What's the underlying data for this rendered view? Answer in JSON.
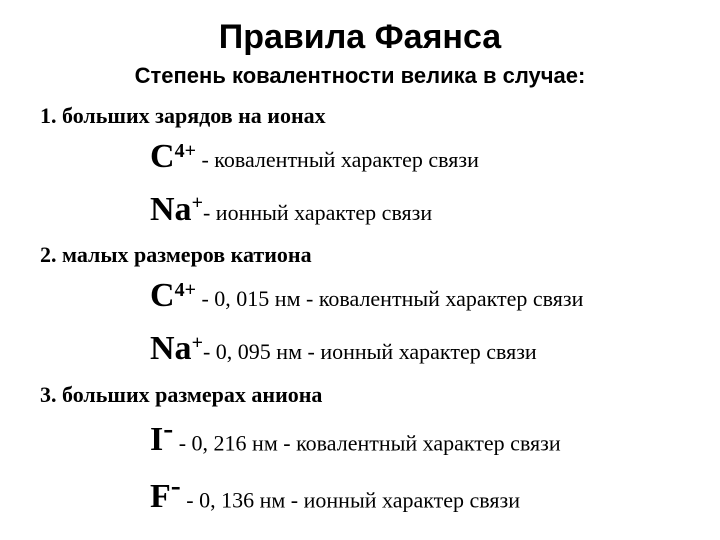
{
  "title": "Правила Фаянса",
  "subtitle": "Степень ковалентности велика в случае:",
  "rules": [
    {
      "num": "1.",
      "heading": "больших зарядов на ионах",
      "lines": [
        {
          "sym": "C",
          "sup": "4+",
          "sup_big": false,
          "desc": " - ковалентный характер связи"
        },
        {
          "sym": "Na",
          "sup": "+",
          "sup_big": false,
          "desc": "- ионный характер связи"
        }
      ]
    },
    {
      "num": "2.",
      "heading": "малых размеров катиона",
      "lines": [
        {
          "sym": "C",
          "sup": "4+",
          "sup_big": false,
          "desc": " -   0, 015 нм - ковалентный характер связи"
        },
        {
          "sym": "Na",
          "sup": "+",
          "sup_big": false,
          "desc": "-   0, 095 нм - ионный характер связи"
        }
      ]
    },
    {
      "num": "3.",
      "heading": "больших размерах аниона",
      "lines": [
        {
          "sym": "I",
          "sup": "-",
          "sup_big": true,
          "desc": "   - 0, 216 нм - ковалентный характер связи"
        },
        {
          "sym": "F",
          "sup": "-",
          "sup_big": true,
          "desc": "  - 0, 136 нм - ионный характер связи"
        }
      ]
    }
  ]
}
